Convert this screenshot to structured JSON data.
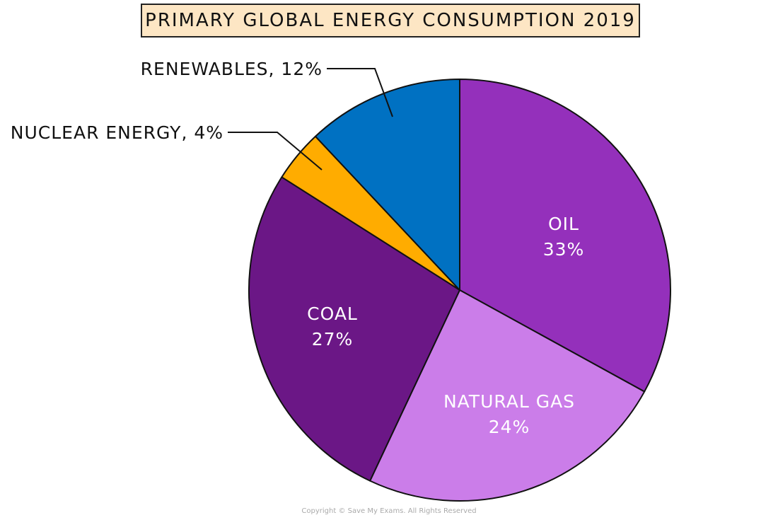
{
  "chart_data": {
    "type": "pie",
    "title": "PRIMARY GLOBAL ENERGY CONSUMPTION 2019",
    "start": "top",
    "direction": "clockwise",
    "slices": [
      {
        "name": "OIL",
        "value": 33,
        "label": "33%",
        "color": "#9430bb"
      },
      {
        "name": "NATURAL GAS",
        "value": 24,
        "label": "24%",
        "color": "#cb7de9"
      },
      {
        "name": "COAL",
        "value": 27,
        "label": "27%",
        "color": "#6b1786"
      },
      {
        "name": "NUCLEAR ENERGY",
        "value": 4,
        "label": "NUCLEAR ENERGY, 4%",
        "color": "#ffac00"
      },
      {
        "name": "RENEWABLES",
        "value": 12,
        "label": "RENEWABLES, 12%",
        "color": "#0071c2"
      }
    ]
  },
  "copyright": "Copyright © Save My Exams. All Rights Reserved"
}
